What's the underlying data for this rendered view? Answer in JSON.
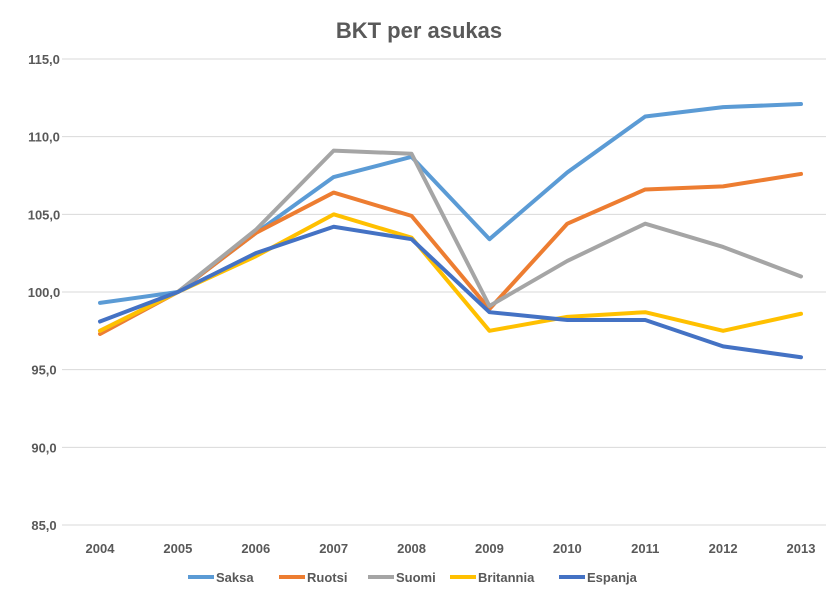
{
  "chart_data": {
    "type": "line",
    "title": "BKT per asukas",
    "xlabel": "",
    "ylabel": "",
    "categories": [
      "2004",
      "2005",
      "2006",
      "2007",
      "2008",
      "2009",
      "2010",
      "2011",
      "2012",
      "2013"
    ],
    "ylim": [
      85,
      115
    ],
    "yticks": [
      "85,0",
      "90,0",
      "95,0",
      "100,0",
      "105,0",
      "110,0",
      "115,0"
    ],
    "grid": true,
    "legend": "bottom",
    "series": [
      {
        "name": "Saksa",
        "color": "#5B9BD5",
        "values": [
          99.3,
          100,
          103.8,
          107.4,
          108.7,
          103.4,
          107.7,
          111.3,
          111.9,
          112.1
        ]
      },
      {
        "name": "Ruotsi",
        "color": "#ED7D31",
        "values": [
          97.3,
          100,
          103.8,
          106.4,
          104.9,
          98.9,
          104.4,
          106.6,
          106.8,
          107.6
        ]
      },
      {
        "name": "Suomi",
        "color": "#A5A5A5",
        "values": [
          97.5,
          100,
          104.0,
          109.1,
          108.9,
          99.1,
          102.0,
          104.4,
          102.9,
          101.0
        ]
      },
      {
        "name": "Britannia",
        "color": "#FFC000",
        "values": [
          97.5,
          100,
          102.3,
          105.0,
          103.5,
          97.5,
          98.4,
          98.7,
          97.5,
          98.6
        ]
      },
      {
        "name": "Espanja",
        "color": "#4472C4",
        "values": [
          98.1,
          100,
          102.5,
          104.2,
          103.4,
          98.7,
          98.2,
          98.2,
          96.5,
          95.8
        ]
      }
    ]
  }
}
